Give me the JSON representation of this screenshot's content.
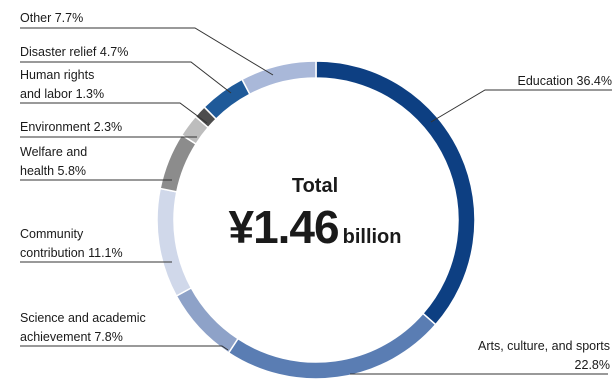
{
  "chart_data": {
    "type": "pie",
    "style": "donut",
    "center": {
      "label": "Total",
      "value": "¥1.46",
      "unit": "billion"
    },
    "slices": [
      {
        "name": "Education",
        "value": 36.4,
        "value_label": "36.4%",
        "color": "#0d3f82"
      },
      {
        "name": "Arts, culture, and sports",
        "value": 22.8,
        "value_label": "22.8%",
        "color": "#5a7db3"
      },
      {
        "name": "Science and academic achievement",
        "value": 7.8,
        "value_label": "7.8%",
        "color": "#8ea2c8"
      },
      {
        "name": "Community contribution",
        "value": 11.1,
        "value_label": "11.1%",
        "color": "#d0d8ea"
      },
      {
        "name": "Welfare and health",
        "value": 5.8,
        "value_label": "5.8%",
        "color": "#8c8c8c"
      },
      {
        "name": "Environment",
        "value": 2.3,
        "value_label": "2.3%",
        "color": "#bdbdbd"
      },
      {
        "name": "Human rights and labor",
        "value": 1.3,
        "value_label": "1.3%",
        "color": "#4d4d4d"
      },
      {
        "name": "Disaster relief",
        "value": 4.7,
        "value_label": "4.7%",
        "color": "#1f5a99"
      },
      {
        "name": "Other",
        "value": 7.7,
        "value_label": "7.7%",
        "color": "#a9b8d9"
      }
    ],
    "labels": {
      "education": {
        "line1": "Education  36.4%"
      },
      "arts": {
        "line1": "Arts, culture, and sports",
        "line2": "22.8%"
      },
      "science": {
        "line1": "Science and academic",
        "line2": "achievement  7.8%"
      },
      "community": {
        "line1": "Community",
        "line2": "contribution  11.1%"
      },
      "welfare": {
        "line1": "Welfare and",
        "line2": "health  5.8%"
      },
      "environment": {
        "line1": "Environment  2.3%"
      },
      "human_rights": {
        "line1": "Human rights",
        "line2": "and labor  1.3%"
      },
      "disaster": {
        "line1": "Disaster relief  4.7%"
      },
      "other": {
        "line1": "Other  7.7%"
      }
    }
  }
}
